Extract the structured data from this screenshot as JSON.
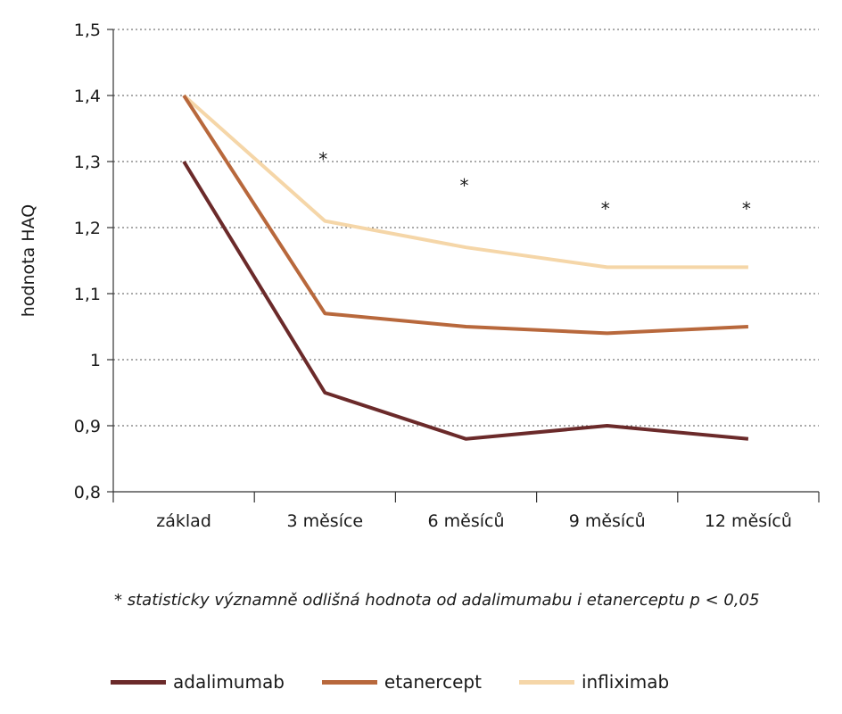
{
  "chart_data": {
    "type": "line",
    "ylabel": "hodnota HAQ",
    "xlabel": "",
    "categories": [
      "základ",
      "3 měsíce",
      "6 měsíců",
      "9 měsíců",
      "12 měsíců"
    ],
    "ylim": [
      0.8,
      1.5
    ],
    "yticks": [
      0.8,
      0.9,
      1.0,
      1.1,
      1.2,
      1.3,
      1.4,
      1.5
    ],
    "ytick_labels": [
      "0,8",
      "0,9",
      "1",
      "1,1",
      "1,2",
      "1,3",
      "1,4",
      "1,5"
    ],
    "grid": true,
    "series": [
      {
        "name": "adalimumab",
        "color": "#6b2a2a",
        "values": [
          1.3,
          0.95,
          0.88,
          0.9,
          0.88
        ]
      },
      {
        "name": "etanercept",
        "color": "#b8683c",
        "values": [
          1.4,
          1.07,
          1.05,
          1.04,
          1.05
        ]
      },
      {
        "name": "infliximab",
        "color": "#f5d6a8",
        "values": [
          1.4,
          1.21,
          1.17,
          1.14,
          1.14
        ]
      }
    ],
    "annotations": [
      {
        "text": "*",
        "category": "3 měsíce",
        "y": 1.31
      },
      {
        "text": "*",
        "category": "6 měsíců",
        "y": 1.27
      },
      {
        "text": "*",
        "category": "9 měsíců",
        "y": 1.235
      },
      {
        "text": "*",
        "category": "12 měsíců",
        "y": 1.235
      }
    ],
    "footnote": "* statisticky významně odlišná hodnota od adalimumabu i etanerceptu p < 0,05",
    "legend_position": "bottom"
  }
}
